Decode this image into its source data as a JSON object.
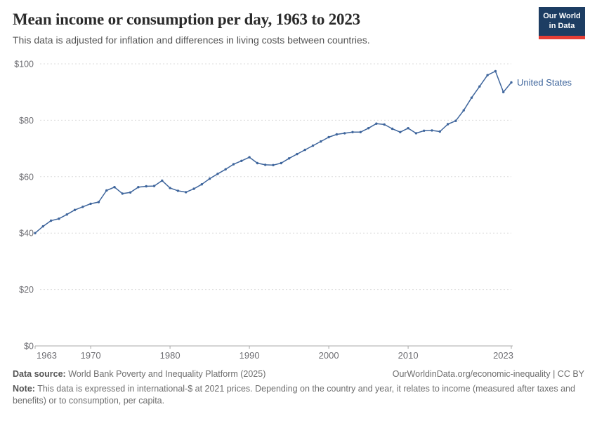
{
  "header": {
    "title": "Mean income or consumption per day, 1963 to 2023",
    "subtitle": "This data is adjusted for inflation and differences in living costs between countries.",
    "logo": {
      "line1": "Our World",
      "line2": "in Data",
      "bg_color": "#1d3d63",
      "accent_color": "#e63e36"
    }
  },
  "chart_data": {
    "type": "line",
    "title": "Mean income or consumption per day, 1963 to 2023",
    "xlabel": "",
    "ylabel": "",
    "xlim": [
      1963,
      2023
    ],
    "ylim": [
      0,
      100
    ],
    "grid": "horizontal-dashed",
    "legend_position": "end-of-line-label",
    "y_ticks": [
      {
        "value": 0,
        "label": "$0"
      },
      {
        "value": 20,
        "label": "$20"
      },
      {
        "value": 40,
        "label": "$40"
      },
      {
        "value": 60,
        "label": "$60"
      },
      {
        "value": 80,
        "label": "$80"
      },
      {
        "value": 100,
        "label": "$100"
      }
    ],
    "x_ticks": [
      {
        "value": 1963,
        "label": "1963"
      },
      {
        "value": 1970,
        "label": "1970"
      },
      {
        "value": 1980,
        "label": "1980"
      },
      {
        "value": 1990,
        "label": "1990"
      },
      {
        "value": 2000,
        "label": "2000"
      },
      {
        "value": 2010,
        "label": "2010"
      },
      {
        "value": 2023,
        "label": "2023"
      }
    ],
    "series": [
      {
        "name": "United States",
        "color": "#3e659c",
        "x": [
          1963,
          1964,
          1965,
          1966,
          1967,
          1968,
          1969,
          1970,
          1971,
          1972,
          1973,
          1974,
          1975,
          1976,
          1977,
          1978,
          1979,
          1980,
          1981,
          1982,
          1983,
          1984,
          1985,
          1986,
          1987,
          1988,
          1989,
          1990,
          1991,
          1992,
          1993,
          1994,
          1995,
          1996,
          1997,
          1998,
          1999,
          2000,
          2001,
          2002,
          2003,
          2004,
          2005,
          2006,
          2007,
          2008,
          2009,
          2010,
          2011,
          2012,
          2013,
          2014,
          2015,
          2016,
          2017,
          2018,
          2019,
          2020,
          2021,
          2022,
          2023
        ],
        "values": [
          40.0,
          42.4,
          44.4,
          45.1,
          46.6,
          48.2,
          49.3,
          50.4,
          51.0,
          55.1,
          56.3,
          54.0,
          54.4,
          56.3,
          56.6,
          56.7,
          58.6,
          56.0,
          55.0,
          54.5,
          55.7,
          57.3,
          59.3,
          61.0,
          62.6,
          64.4,
          65.6,
          66.9,
          64.8,
          64.2,
          64.1,
          64.8,
          66.5,
          68.0,
          69.5,
          71.0,
          72.5,
          74.0,
          75.0,
          75.4,
          75.8,
          75.8,
          77.2,
          78.8,
          78.5,
          77.0,
          75.8,
          77.2,
          75.4,
          76.3,
          76.4,
          76.0,
          78.6,
          79.8,
          83.5,
          88.0,
          92.0,
          96.0,
          97.4,
          90.0,
          93.4
        ]
      }
    ],
    "colors": {
      "grid": "#dcdcdc",
      "axis": "#a8a8a8",
      "tick_text": "#6e6e73"
    }
  },
  "footer": {
    "source_label": "Data source:",
    "source_text": "World Bank Poverty and Inequality Platform (2025)",
    "link_text": "OurWorldinData.org/economic-inequality",
    "license_text": "CC BY",
    "separator": " | ",
    "note_label": "Note:",
    "note_text": "This data is expressed in international-$ at 2021 prices. Depending on the country and year, it relates to income (measured after taxes and benefits) or to consumption, per capita."
  }
}
